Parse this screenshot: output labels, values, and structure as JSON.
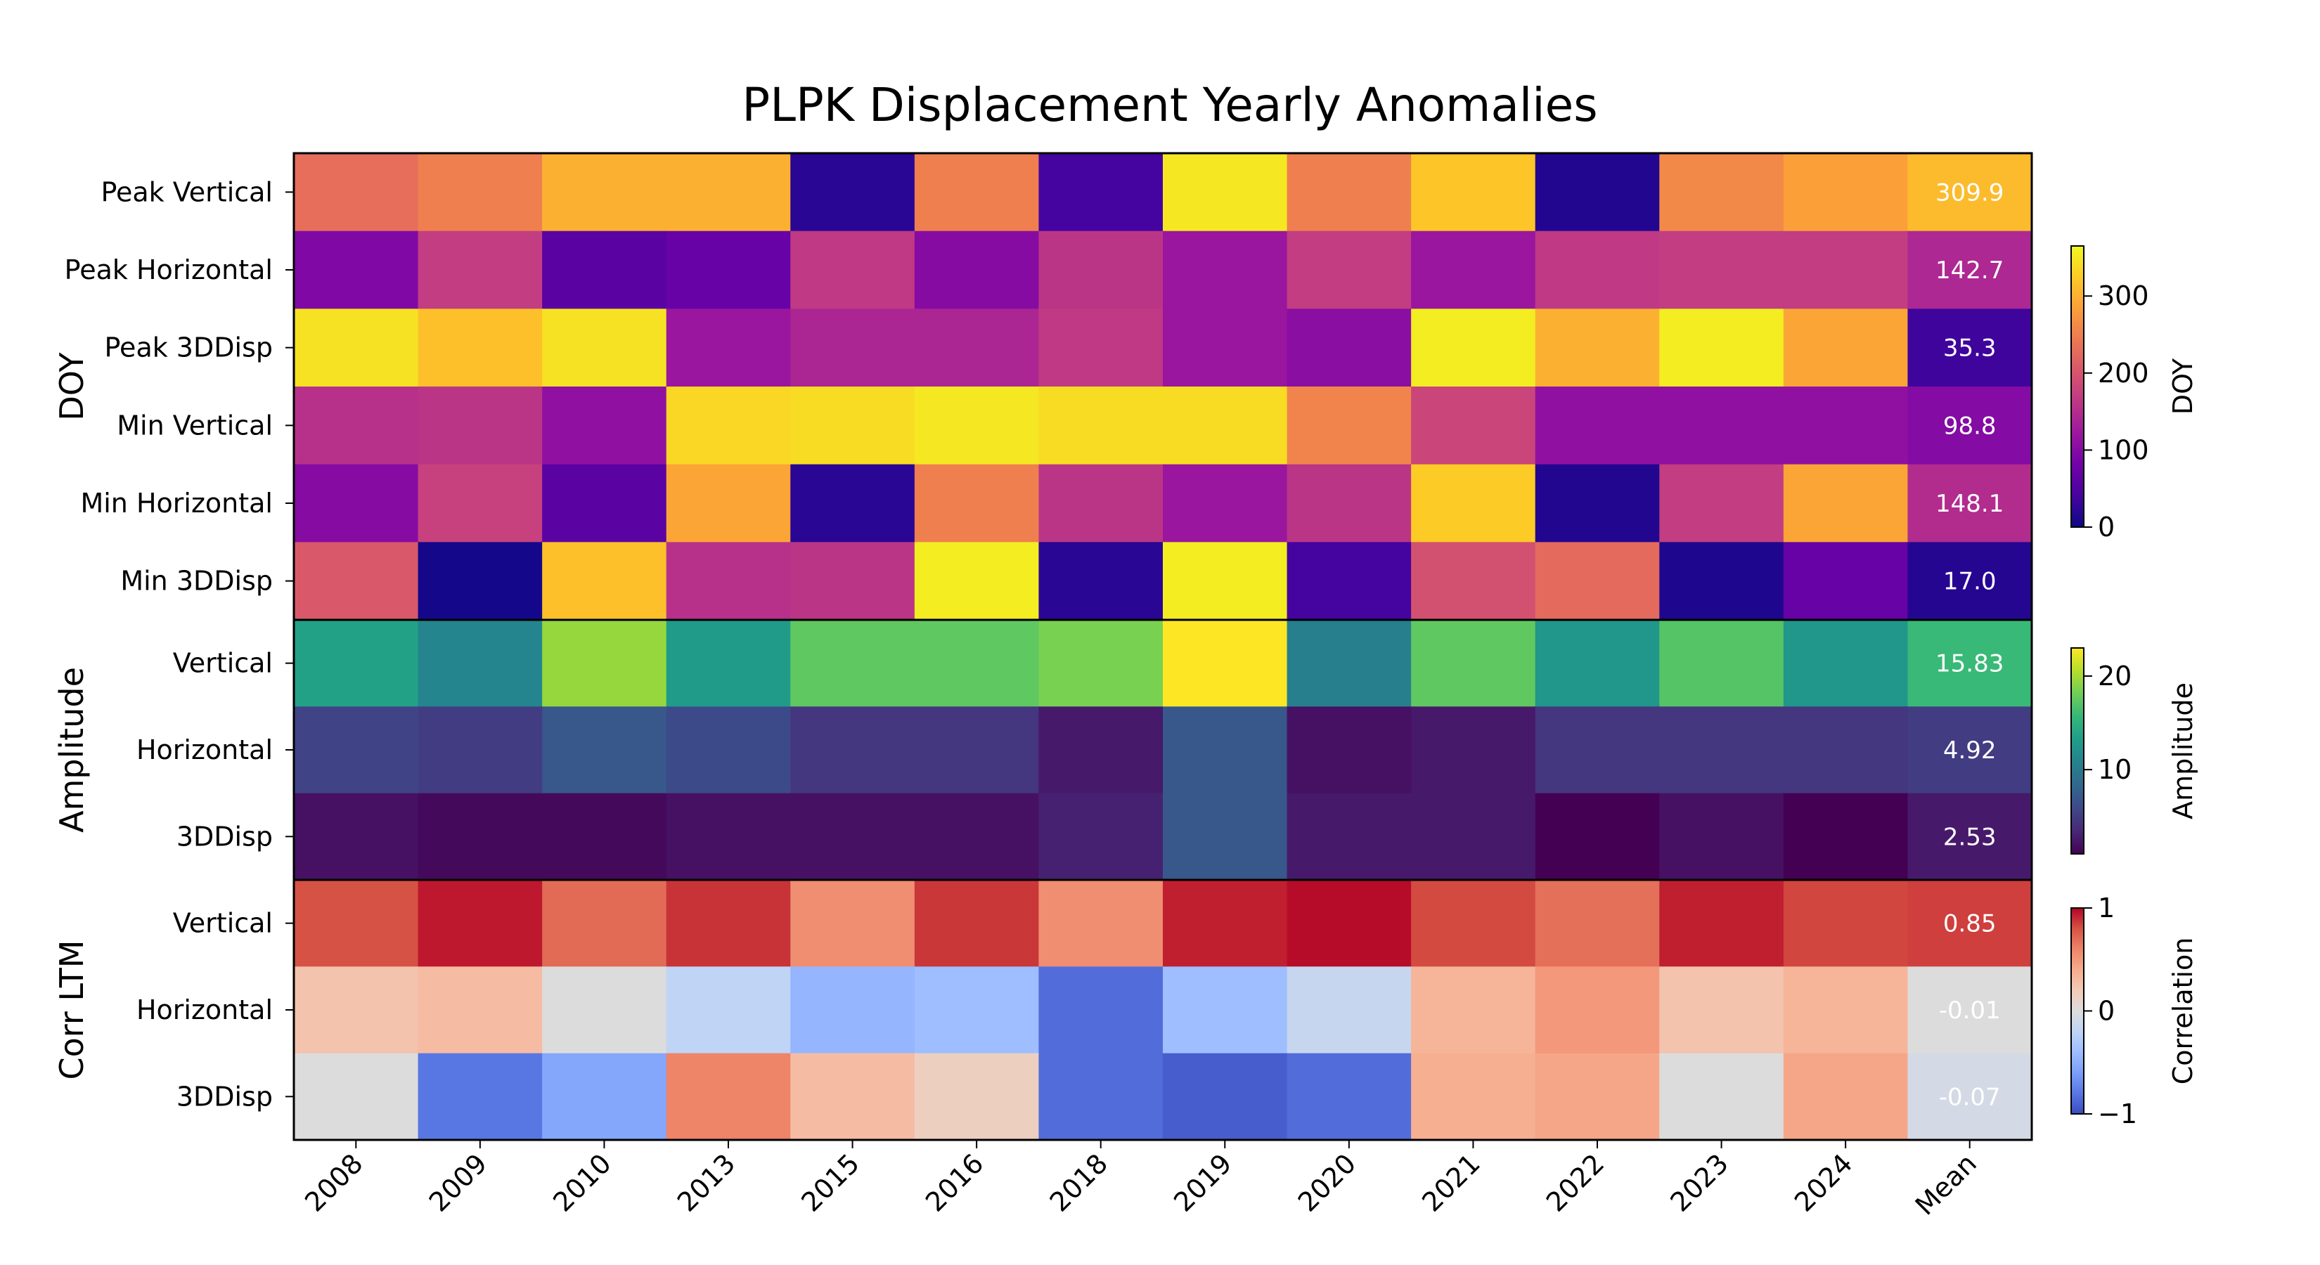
{
  "chart_data": {
    "type": "heatmap",
    "title": "PLPK Displacement Yearly Anomalies",
    "columns": [
      "2008",
      "2009",
      "2010",
      "2013",
      "2015",
      "2016",
      "2018",
      "2019",
      "2020",
      "2021",
      "2022",
      "2023",
      "2024",
      "Mean"
    ],
    "blocks": [
      {
        "label": "DOY",
        "colormap": "plasma",
        "vmin": 0,
        "vmax": 365,
        "colorbar": {
          "label": "DOY",
          "ticks": [
            0,
            100,
            200,
            300
          ],
          "tick_labels": [
            "0",
            "100",
            "200",
            "300"
          ]
        },
        "rows": [
          {
            "label": "Peak Vertical",
            "values": [
              230,
              250,
              300,
              300,
              20,
              250,
              40,
              350,
              250,
              320,
              15,
              260,
              285
            ],
            "mean_label": "309.9"
          },
          {
            "label": "Peak Horizontal",
            "values": [
              95,
              170,
              60,
              70,
              165,
              100,
              160,
              120,
              170,
              120,
              165,
              170,
              170
            ],
            "mean_label": "142.7"
          },
          {
            "label": "Peak 3DDisp",
            "values": [
              345,
              315,
              345,
              120,
              140,
              140,
              165,
              120,
              105,
              355,
              300,
              355,
              290
            ],
            "mean_label": "35.3"
          },
          {
            "label": "Min Vertical",
            "values": [
              155,
              160,
              110,
              335,
              340,
              350,
              340,
              340,
              255,
              180,
              110,
              110,
              110
            ],
            "mean_label": "98.8"
          },
          {
            "label": "Min Horizontal",
            "values": [
              100,
              175,
              60,
              290,
              20,
              250,
              160,
              120,
              160,
              325,
              15,
              170,
              290
            ],
            "mean_label": "148.1"
          },
          {
            "label": "Min 3DDisp",
            "values": [
              205,
              5,
              315,
              155,
              160,
              355,
              20,
              355,
              40,
              195,
              225,
              12,
              70
            ],
            "mean_label": "17.0"
          }
        ]
      },
      {
        "label": "Amplitude",
        "colormap": "viridis",
        "vmin": 1,
        "vmax": 23,
        "colorbar": {
          "label": "Amplitude",
          "ticks": [
            10,
            20
          ],
          "tick_labels": [
            "10",
            "20"
          ]
        },
        "rows": [
          {
            "label": "Vertical",
            "values": [
              13.5,
              11.0,
              19.5,
              13.0,
              17.5,
              17.5,
              18.5,
              23.0,
              10.5,
              17.5,
              12.5,
              17.0,
              12.5
            ],
            "mean_label": "15.83"
          },
          {
            "label": "Horizontal",
            "values": [
              5.5,
              5.0,
              7.0,
              6.0,
              4.5,
              4.5,
              2.5,
              7.0,
              2.0,
              2.5,
              4.5,
              4.5,
              4.5
            ],
            "mean_label": "4.92"
          },
          {
            "label": "3DDisp",
            "values": [
              2.0,
              1.5,
              1.5,
              2.0,
              2.0,
              2.0,
              3.0,
              7.0,
              2.5,
              2.5,
              1.0,
              2.0,
              1.0
            ],
            "mean_label": "2.53"
          }
        ]
      },
      {
        "label": "Corr LTM",
        "colormap": "coolwarm",
        "vmin": -1,
        "vmax": 1,
        "colorbar": {
          "label": "Correlation",
          "ticks": [
            -1,
            0,
            1
          ],
          "tick_labels": [
            "−1",
            "0",
            "1"
          ]
        },
        "rows": [
          {
            "label": "Vertical",
            "values": [
              0.8,
              0.95,
              0.7,
              0.88,
              0.55,
              0.87,
              0.55,
              0.93,
              0.98,
              0.82,
              0.68,
              0.93,
              0.83
            ],
            "mean_label": "0.85"
          },
          {
            "label": "Horizontal",
            "values": [
              0.25,
              0.3,
              0.0,
              -0.2,
              -0.45,
              -0.4,
              -0.85,
              -0.4,
              -0.15,
              0.35,
              0.5,
              0.25,
              0.35
            ],
            "mean_label": "-0.01"
          },
          {
            "label": "3DDisp",
            "values": [
              0.0,
              -0.8,
              -0.55,
              0.6,
              0.3,
              0.15,
              -0.85,
              -0.92,
              -0.85,
              0.38,
              0.43,
              0.0,
              0.43
            ],
            "mean_label": "-0.07"
          }
        ]
      }
    ]
  }
}
